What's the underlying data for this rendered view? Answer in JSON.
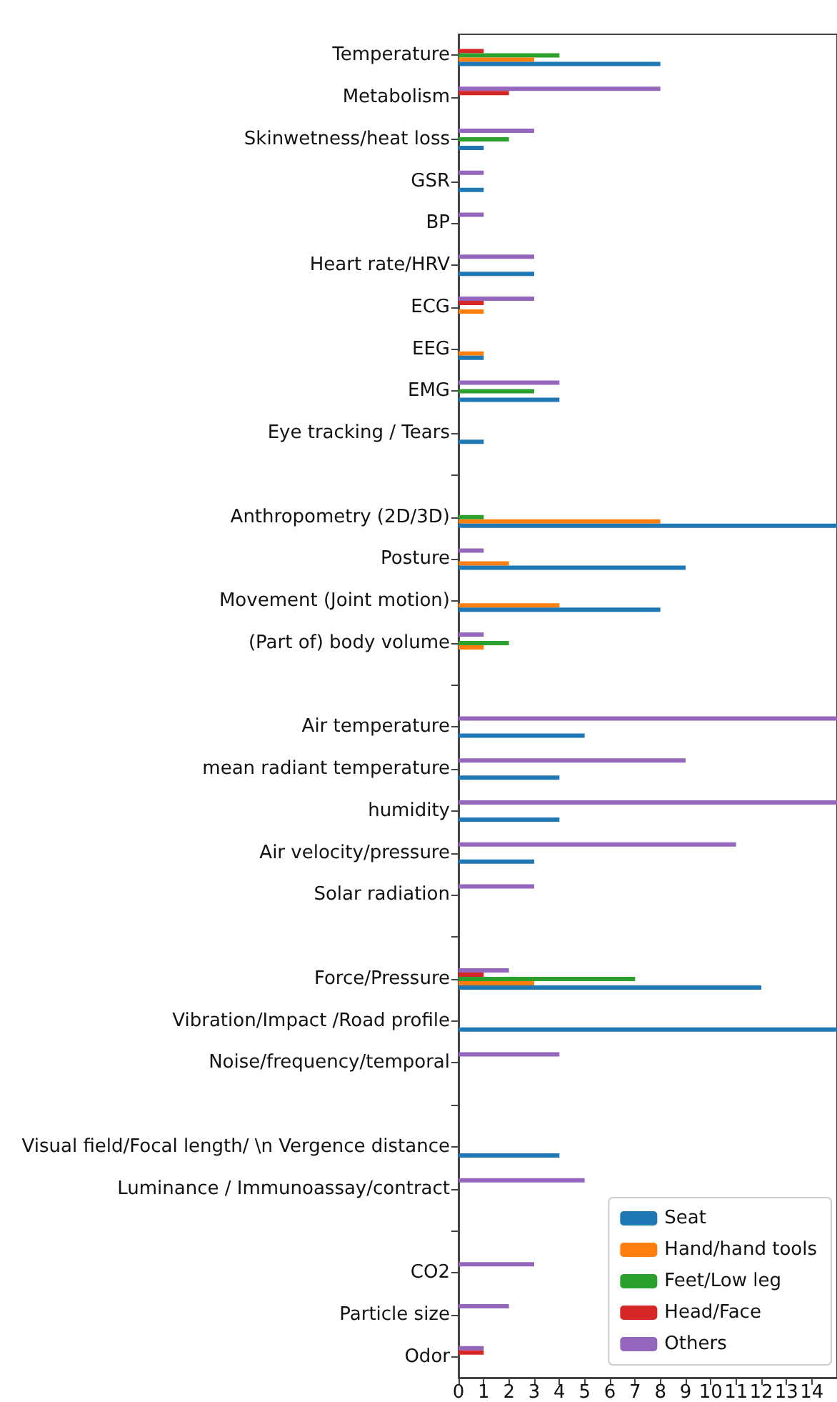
{
  "chart_data": {
    "type": "bar",
    "orientation": "horizontal",
    "legend": "bottom right",
    "grid": false,
    "categories": [
      "Temperature",
      "Metabolism",
      "Skinwetness/heat loss",
      "GSR",
      "BP",
      "Heart rate/HRV",
      "ECG",
      "EEG",
      "EMG",
      "Eye tracking / Tears",
      null,
      "Anthropometry (2D/3D)",
      "Posture",
      "Movement (Joint motion)",
      "(Part of) body volume",
      null,
      "Air temperature",
      "mean radiant temperature",
      "humidity",
      "Air velocity/pressure",
      "Solar radiation",
      null,
      "Force/Pressure",
      "Vibration/Impact /Road profile",
      "Noise/frequency/temporal",
      null,
      "Visual field/Focal length/ \\n Vergence distance",
      "Luminance / Immunoassay/contract",
      null,
      "CO2",
      "Particle size",
      "Odor"
    ],
    "xlim": [
      0,
      15
    ],
    "xticks": [
      0,
      1,
      2,
      3,
      4,
      5,
      6,
      7,
      8,
      9,
      10,
      11,
      12,
      13,
      14
    ],
    "series": [
      {
        "name": "Seat",
        "color": "#1f77b4",
        "values": [
          8,
          0,
          1,
          1,
          0,
          3,
          0,
          1,
          4,
          1,
          0,
          15,
          9,
          8,
          0,
          0,
          5,
          4,
          4,
          3,
          0,
          0,
          12,
          15,
          0,
          0,
          4,
          0,
          0,
          0,
          0,
          0
        ]
      },
      {
        "name": "Hand/hand tools",
        "color": "#ff7f0e",
        "values": [
          3,
          0,
          0,
          0,
          0,
          0,
          1,
          1,
          0,
          0,
          0,
          8,
          2,
          4,
          1,
          0,
          0,
          0,
          0,
          0,
          0,
          0,
          3,
          0,
          0,
          0,
          0,
          0,
          0,
          0,
          0,
          0
        ]
      },
      {
        "name": "Feet/Low leg",
        "color": "#2ca02c",
        "values": [
          4,
          0,
          2,
          0,
          0,
          0,
          0,
          0,
          3,
          0,
          0,
          1,
          0,
          0,
          2,
          0,
          0,
          0,
          0,
          0,
          0,
          0,
          7,
          0,
          0,
          0,
          0,
          0,
          0,
          0,
          0,
          0
        ]
      },
      {
        "name": "Head/Face",
        "color": "#d62728",
        "values": [
          1,
          2,
          0,
          0,
          0,
          0,
          1,
          0,
          0,
          0,
          0,
          0,
          0,
          0,
          0,
          0,
          0,
          0,
          0,
          0,
          0,
          0,
          1,
          0,
          0,
          0,
          0,
          0,
          0,
          0,
          0,
          1
        ]
      },
      {
        "name": "Others",
        "color": "#9467bd",
        "values": [
          0,
          8,
          3,
          1,
          1,
          3,
          3,
          0,
          4,
          0,
          0,
          0,
          1,
          0,
          1,
          0,
          15,
          9,
          15,
          11,
          3,
          0,
          2,
          0,
          4,
          0,
          0,
          5,
          0,
          3,
          2,
          1
        ]
      }
    ]
  }
}
